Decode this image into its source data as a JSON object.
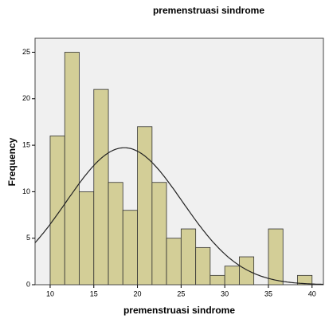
{
  "chart_data": {
    "type": "histogram",
    "title": "premenstruasi sindrome",
    "x_label": "premenstruasi sindrome",
    "y_label": "Frequency",
    "bins": [
      10,
      11.67,
      13.33,
      15,
      16.67,
      18.33,
      20,
      21.67,
      23.33,
      25,
      26.67,
      28.33,
      30,
      31.67,
      33.33,
      35,
      36.67,
      38.33,
      40
    ],
    "values": [
      16,
      25,
      10,
      21,
      11,
      8,
      17,
      11,
      5,
      6,
      4,
      1,
      2,
      3,
      0,
      6,
      0,
      1
    ],
    "color": "#d3ce97",
    "curve": {
      "mean": 18.5,
      "sd": 6.65
    },
    "xlim": [
      8.27,
      41.3
    ],
    "xticks": [
      10,
      15,
      20,
      25,
      30,
      35,
      40
    ],
    "ylim": [
      0,
      26.5
    ],
    "yticks": [
      0,
      5,
      10,
      15,
      20,
      25
    ]
  }
}
